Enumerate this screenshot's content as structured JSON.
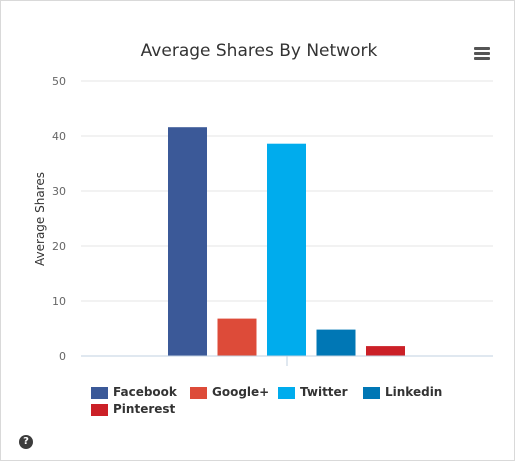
{
  "chart_data": {
    "type": "bar",
    "title": "Average Shares By Network",
    "ylabel": "Average Shares",
    "xlabel": "",
    "ylim": [
      0,
      50
    ],
    "yticks": [
      0,
      10,
      20,
      30,
      40,
      50
    ],
    "grid": true,
    "legend_position": "bottom",
    "categories": [
      "Facebook",
      "Google+",
      "Twitter",
      "Linkedin",
      "Pinterest"
    ],
    "values": [
      41.6,
      6.8,
      38.6,
      4.8,
      1.8
    ],
    "colors": [
      "#3b5998",
      "#dd4b39",
      "#00aced",
      "#0077b5",
      "#cb2027"
    ]
  },
  "icons": {
    "menu": "hamburger-menu-icon",
    "help": "help-circle-icon"
  },
  "help_glyph": "?"
}
